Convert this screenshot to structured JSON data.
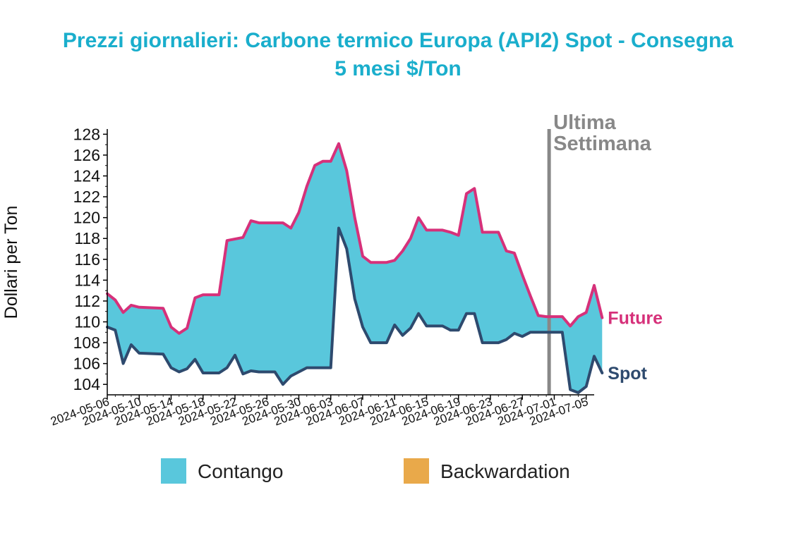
{
  "chart_data": {
    "type": "area",
    "title_line1": "Prezzi giornalieri: Carbone termico Europa (API2) Spot - Consegna",
    "title_line2": "5 mesi $/Ton",
    "ylabel": "Dollari per Ton",
    "ylim": [
      103,
      128.5
    ],
    "yticks": [
      104,
      106,
      108,
      110,
      112,
      114,
      116,
      118,
      120,
      122,
      124,
      126,
      128
    ],
    "x_start": "2024-05-06",
    "x_end": "2024-07-06",
    "xticks": [
      "2024-05-06",
      "2024-05-10",
      "2024-05-14",
      "2024-05-18",
      "2024-05-22",
      "2024-05-26",
      "2024-05-30",
      "2024-06-03",
      "2024-06-07",
      "2024-06-11",
      "2024-06-15",
      "2024-06-19",
      "2024-06-23",
      "2024-06-27",
      "2024-07-01",
      "2024-07-05"
    ],
    "series": [
      {
        "name": "Future",
        "color": "#d6317a",
        "points": [
          [
            "2024-05-06",
            112.7
          ],
          [
            "2024-05-07",
            112.1
          ],
          [
            "2024-05-08",
            110.9
          ],
          [
            "2024-05-09",
            111.6
          ],
          [
            "2024-05-10",
            111.4
          ],
          [
            "2024-05-13",
            111.3
          ],
          [
            "2024-05-14",
            109.5
          ],
          [
            "2024-05-15",
            108.9
          ],
          [
            "2024-05-16",
            109.4
          ],
          [
            "2024-05-17",
            112.3
          ],
          [
            "2024-05-18",
            112.6
          ],
          [
            "2024-05-20",
            112.6
          ],
          [
            "2024-05-21",
            117.8
          ],
          [
            "2024-05-23",
            118.1
          ],
          [
            "2024-05-24",
            119.7
          ],
          [
            "2024-05-25",
            119.5
          ],
          [
            "2024-05-28",
            119.5
          ],
          [
            "2024-05-29",
            119.0
          ],
          [
            "2024-05-30",
            120.5
          ],
          [
            "2024-05-31",
            123.0
          ],
          [
            "2024-06-01",
            125.0
          ],
          [
            "2024-06-02",
            125.4
          ],
          [
            "2024-06-03",
            125.4
          ],
          [
            "2024-06-04",
            127.1
          ],
          [
            "2024-06-05",
            124.5
          ],
          [
            "2024-06-06",
            120.0
          ],
          [
            "2024-06-07",
            116.3
          ],
          [
            "2024-06-08",
            115.7
          ],
          [
            "2024-06-10",
            115.7
          ],
          [
            "2024-06-11",
            115.9
          ],
          [
            "2024-06-12",
            116.8
          ],
          [
            "2024-06-13",
            118.0
          ],
          [
            "2024-06-14",
            120.0
          ],
          [
            "2024-06-15",
            118.8
          ],
          [
            "2024-06-17",
            118.8
          ],
          [
            "2024-06-18",
            118.6
          ],
          [
            "2024-06-19",
            118.3
          ],
          [
            "2024-06-20",
            122.3
          ],
          [
            "2024-06-21",
            122.8
          ],
          [
            "2024-06-22",
            118.6
          ],
          [
            "2024-06-24",
            118.6
          ],
          [
            "2024-06-25",
            116.8
          ],
          [
            "2024-06-26",
            116.6
          ],
          [
            "2024-06-27",
            114.5
          ],
          [
            "2024-06-28",
            112.5
          ],
          [
            "2024-06-29",
            110.6
          ],
          [
            "2024-06-30",
            110.5
          ],
          [
            "2024-07-02",
            110.5
          ],
          [
            "2024-07-03",
            109.6
          ],
          [
            "2024-07-04",
            110.5
          ],
          [
            "2024-07-05",
            110.9
          ],
          [
            "2024-07-06",
            113.5
          ],
          [
            "2024-07-07",
            110.4
          ]
        ]
      },
      {
        "name": "Spot",
        "color": "#2e4a6e",
        "points": [
          [
            "2024-05-06",
            109.5
          ],
          [
            "2024-05-07",
            109.2
          ],
          [
            "2024-05-08",
            106.0
          ],
          [
            "2024-05-09",
            107.8
          ],
          [
            "2024-05-10",
            107.0
          ],
          [
            "2024-05-13",
            106.9
          ],
          [
            "2024-05-14",
            105.6
          ],
          [
            "2024-05-15",
            105.2
          ],
          [
            "2024-05-16",
            105.5
          ],
          [
            "2024-05-17",
            106.4
          ],
          [
            "2024-05-18",
            105.1
          ],
          [
            "2024-05-20",
            105.1
          ],
          [
            "2024-05-21",
            105.6
          ],
          [
            "2024-05-22",
            106.8
          ],
          [
            "2024-05-23",
            105.0
          ],
          [
            "2024-05-24",
            105.3
          ],
          [
            "2024-05-25",
            105.2
          ],
          [
            "2024-05-27",
            105.2
          ],
          [
            "2024-05-28",
            104.0
          ],
          [
            "2024-05-29",
            104.8
          ],
          [
            "2024-05-30",
            105.2
          ],
          [
            "2024-05-31",
            105.6
          ],
          [
            "2024-06-03",
            105.6
          ],
          [
            "2024-06-04",
            119.0
          ],
          [
            "2024-06-05",
            117.0
          ],
          [
            "2024-06-06",
            112.2
          ],
          [
            "2024-06-07",
            109.5
          ],
          [
            "2024-06-08",
            108.0
          ],
          [
            "2024-06-10",
            108.0
          ],
          [
            "2024-06-11",
            109.7
          ],
          [
            "2024-06-12",
            108.7
          ],
          [
            "2024-06-13",
            109.4
          ],
          [
            "2024-06-14",
            110.8
          ],
          [
            "2024-06-15",
            109.6
          ],
          [
            "2024-06-17",
            109.6
          ],
          [
            "2024-06-18",
            109.2
          ],
          [
            "2024-06-19",
            109.2
          ],
          [
            "2024-06-20",
            110.8
          ],
          [
            "2024-06-21",
            110.8
          ],
          [
            "2024-06-22",
            108.0
          ],
          [
            "2024-06-24",
            108.0
          ],
          [
            "2024-06-25",
            108.3
          ],
          [
            "2024-06-26",
            108.9
          ],
          [
            "2024-06-27",
            108.6
          ],
          [
            "2024-06-28",
            109.0
          ],
          [
            "2024-06-29",
            109.0
          ],
          [
            "2024-07-02",
            109.0
          ],
          [
            "2024-07-03",
            103.5
          ],
          [
            "2024-07-04",
            103.2
          ],
          [
            "2024-07-05",
            103.8
          ],
          [
            "2024-07-06",
            106.7
          ],
          [
            "2024-07-07",
            105.1
          ]
        ]
      }
    ],
    "annotation": {
      "line1": "Ultima",
      "line2": "Settimana",
      "date": "2024-06-30",
      "color": "#888888"
    },
    "legend": {
      "placement": "bottom",
      "items": [
        {
          "label": "Contango",
          "color": "#59c7dc"
        },
        {
          "label": "Backwardation",
          "color": "#e9a94a"
        }
      ]
    },
    "fill_color": "#59c7dc",
    "title_color": "#1aaecc",
    "grid": false
  }
}
